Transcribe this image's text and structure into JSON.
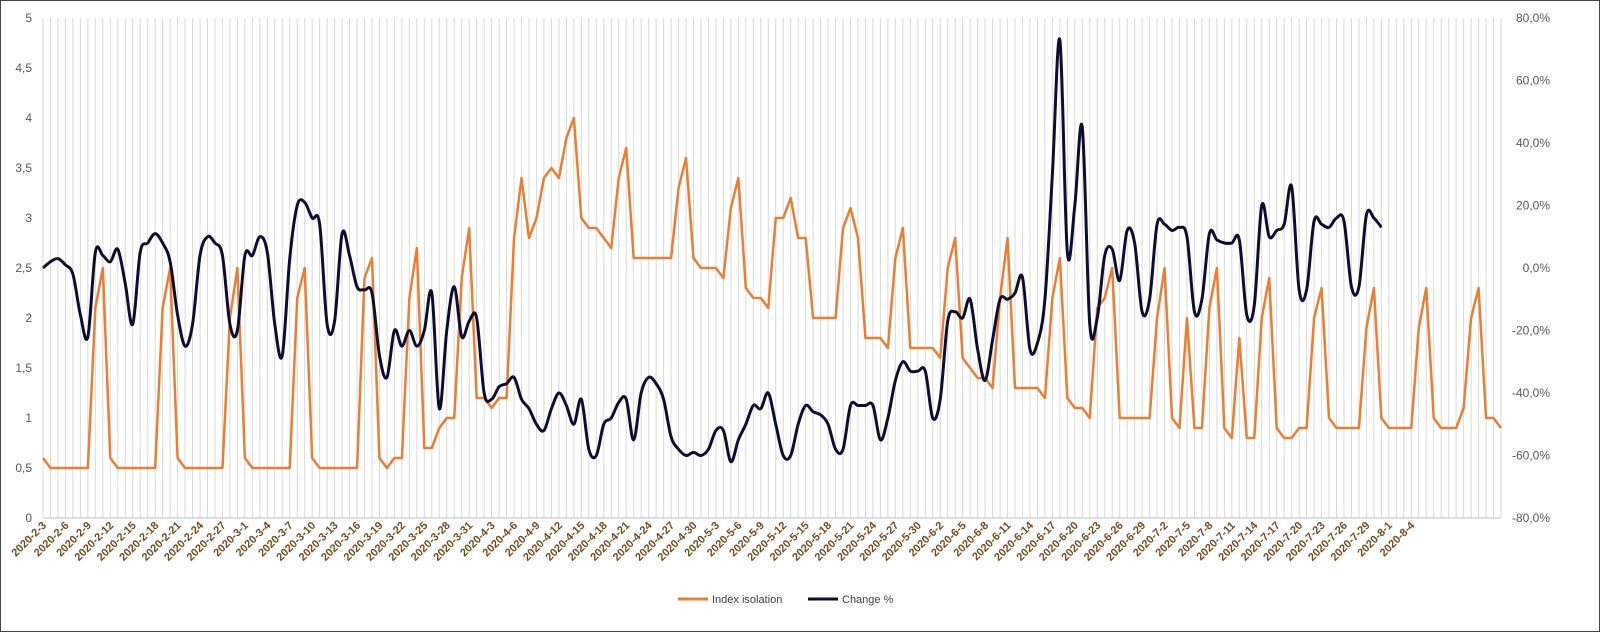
{
  "chart_data": {
    "type": "line",
    "title": "",
    "xlabel": "",
    "ylabel": "",
    "ylim_left": [
      0,
      5
    ],
    "ylim_right": [
      -80,
      80
    ],
    "left_ticks": [
      "0",
      "0,5",
      "1",
      "1,5",
      "2",
      "2,5",
      "3",
      "3,5",
      "4",
      "4,5",
      "5"
    ],
    "right_ticks": [
      "-80,0%",
      "-60,0%",
      "-40,0%",
      "-20,0%",
      "0,0%",
      "20,0%",
      "40,0%",
      "60,0%",
      "80,0%"
    ],
    "grid": "vertical",
    "legend_position": "bottom",
    "colors": {
      "index": "#ed7d31",
      "change": "#0d0d33",
      "grid": "#d9d9d9",
      "axis_label": "#7a4a1a"
    },
    "x_tick_labels": [
      "2020-2-3",
      "2020-2-6",
      "2020-2-9",
      "2020-2-12",
      "2020-2-15",
      "2020-2-18",
      "2020-2-21",
      "2020-2-24",
      "2020-2-27",
      "2020-3-1",
      "2020-3-4",
      "2020-3-7",
      "2020-3-10",
      "2020-3-13",
      "2020-3-16",
      "2020-3-19",
      "2020-3-22",
      "2020-3-25",
      "2020-3-28",
      "2020-3-31",
      "2020-4-3",
      "2020-4-6",
      "2020-4-9",
      "2020-4-12",
      "2020-4-15",
      "2020-4-18",
      "2020-4-21",
      "2020-4-24",
      "2020-4-27",
      "2020-4-30",
      "2020-5-3",
      "2020-5-6",
      "2020-5-9",
      "2020-5-12",
      "2020-5-15",
      "2020-5-18",
      "2020-5-21",
      "2020-5-24",
      "2020-5-27",
      "2020-5-30",
      "2020-6-2",
      "2020-6-5",
      "2020-6-8",
      "2020-6-11",
      "2020-6-14",
      "2020-6-17",
      "2020-6-20",
      "2020-6-23",
      "2020-6-26",
      "2020-6-29",
      "2020-7-2",
      "2020-7-5",
      "2020-7-8",
      "2020-7-11",
      "2020-7-14",
      "2020-7-17",
      "2020-7-20",
      "2020-7-23",
      "2020-7-26",
      "2020-7-29",
      "2020-8-1",
      "2020-8-4"
    ],
    "series": [
      {
        "name": "Index isolation",
        "axis": "left",
        "values": [
          0.6,
          0.5,
          0.5,
          0.5,
          0.5,
          0.5,
          0.5,
          2.1,
          2.5,
          0.6,
          0.5,
          0.5,
          0.5,
          0.5,
          0.5,
          0.5,
          2.1,
          2.5,
          0.6,
          0.5,
          0.5,
          0.5,
          0.5,
          0.5,
          0.5,
          2.0,
          2.5,
          0.6,
          0.5,
          0.5,
          0.5,
          0.5,
          0.5,
          0.5,
          2.2,
          2.5,
          0.6,
          0.5,
          0.5,
          0.5,
          0.5,
          0.5,
          0.5,
          2.4,
          2.6,
          0.6,
          0.5,
          0.6,
          0.6,
          2.2,
          2.7,
          0.7,
          0.7,
          0.9,
          1.0,
          1.0,
          2.4,
          2.9,
          1.2,
          1.2,
          1.1,
          1.2,
          1.2,
          2.8,
          3.4,
          2.8,
          3.0,
          3.4,
          3.5,
          3.4,
          3.8,
          4.0,
          3.0,
          2.9,
          2.9,
          2.8,
          2.7,
          3.4,
          3.7,
          2.6,
          2.6,
          2.6,
          2.6,
          2.6,
          2.6,
          3.3,
          3.6,
          2.6,
          2.5,
          2.5,
          2.5,
          2.4,
          3.1,
          3.4,
          2.3,
          2.2,
          2.2,
          2.1,
          3.0,
          3.0,
          3.2,
          2.8,
          2.8,
          2.0,
          2.0,
          2.0,
          2.0,
          2.9,
          3.1,
          2.8,
          1.8,
          1.8,
          1.8,
          1.7,
          2.6,
          2.9,
          1.7,
          1.7,
          1.7,
          1.7,
          1.6,
          2.5,
          2.8,
          1.6,
          1.5,
          1.4,
          1.4,
          1.3,
          2.2,
          2.8,
          1.3,
          1.3,
          1.3,
          1.3,
          1.2,
          2.2,
          2.6,
          1.2,
          1.1,
          1.1,
          1.0,
          2.1,
          2.2,
          2.5,
          1.0,
          1.0,
          1.0,
          1.0,
          1.0,
          2.0,
          2.5,
          1.0,
          0.9,
          2.0,
          0.9,
          0.9,
          2.1,
          2.5,
          0.9,
          0.8,
          1.8,
          0.8,
          0.8,
          2.0,
          2.4,
          0.9,
          0.8,
          0.8,
          0.9,
          0.9,
          2.0,
          2.3,
          1.0,
          0.9,
          0.9,
          0.9,
          0.9,
          1.9,
          2.3,
          1.0,
          0.9,
          0.9,
          0.9,
          0.9,
          1.9,
          2.3,
          1.0,
          0.9,
          0.9,
          0.9,
          1.1,
          2.0,
          2.3,
          1.0,
          1.0,
          0.9
        ]
      },
      {
        "name": "Change %",
        "axis": "right",
        "values": [
          0,
          2,
          3,
          1,
          -2,
          -15,
          -22,
          5,
          4,
          2,
          6,
          -5,
          -18,
          5,
          8,
          11,
          8,
          2,
          -15,
          -25,
          -18,
          4,
          10,
          8,
          4,
          -18,
          -20,
          4,
          4,
          10,
          5,
          -18,
          -28,
          3,
          20,
          21,
          16,
          14,
          -18,
          -17,
          11,
          4,
          -6,
          -7,
          -8,
          -28,
          -35,
          -20,
          -25,
          -20,
          -25,
          -20,
          -8,
          -45,
          -20,
          -6,
          -22,
          -17,
          -16,
          -40,
          -42,
          -38,
          -37,
          -35,
          -42,
          -45,
          -50,
          -52,
          -45,
          -40,
          -44,
          -50,
          -42,
          -58,
          -60,
          -50,
          -48,
          -43,
          -42,
          -55,
          -40,
          -35,
          -37,
          -42,
          -54,
          -58,
          -60,
          -59,
          -60,
          -58,
          -52,
          -52,
          -62,
          -55,
          -50,
          -44,
          -45,
          -40,
          -50,
          -60,
          -60,
          -50,
          -44,
          -46,
          -47,
          -50,
          -58,
          -58,
          -44,
          -44,
          -44,
          -44,
          -55,
          -48,
          -36,
          -30,
          -33,
          -33,
          -33,
          -48,
          -42,
          -17,
          -14,
          -16,
          -10,
          -26,
          -36,
          -23,
          -10,
          -10,
          -8,
          -3,
          -26,
          -24,
          -10,
          30,
          73,
          5,
          20,
          45,
          -18,
          -16,
          4,
          6,
          -4,
          12,
          8,
          -14,
          -10,
          14,
          14,
          12,
          13,
          10,
          -14,
          -10,
          11,
          9,
          8,
          8,
          9,
          -15,
          -12,
          20,
          10,
          12,
          14,
          26,
          -7,
          -7,
          15,
          14,
          13,
          16,
          15,
          -6,
          -6,
          17,
          16,
          13
        ]
      }
    ]
  },
  "legend": [
    {
      "label": "Index isolation",
      "color": "#ed7d31"
    },
    {
      "label": "Change %",
      "color": "#0d0d33"
    }
  ]
}
